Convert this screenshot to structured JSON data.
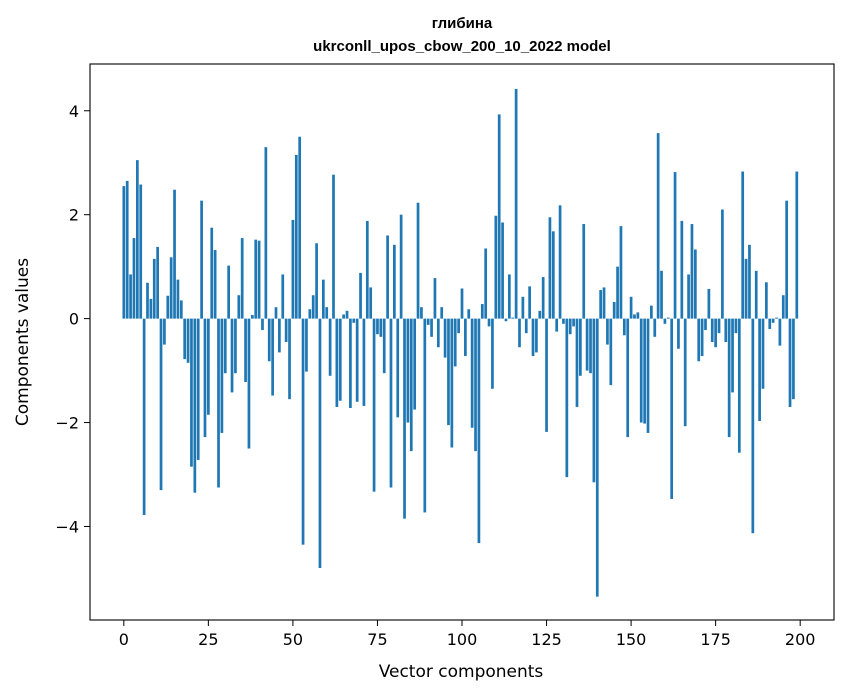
{
  "chart_data": {
    "type": "bar",
    "title": "глибина",
    "subtitle": "ukrconll_upos_cbow_200_10_2022 model",
    "xlabel": "Vector components",
    "ylabel": "Components values",
    "xlim": [
      -10,
      210
    ],
    "ylim": [
      -5.8,
      4.9
    ],
    "xticks": [
      0,
      25,
      50,
      75,
      100,
      125,
      150,
      175,
      200
    ],
    "xtick_labels": [
      "0",
      "25",
      "50",
      "75",
      "100",
      "125",
      "150",
      "175",
      "200"
    ],
    "yticks": [
      4,
      2,
      0,
      -2,
      -4
    ],
    "ytick_labels": [
      "4",
      "2",
      "0",
      "−2",
      "−4"
    ],
    "grid": false,
    "bar_color": "#1f77b4",
    "x": [
      0,
      1,
      2,
      3,
      4,
      5,
      6,
      7,
      8,
      9,
      10,
      11,
      12,
      13,
      14,
      15,
      16,
      17,
      18,
      19,
      20,
      21,
      22,
      23,
      24,
      25,
      26,
      27,
      28,
      29,
      30,
      31,
      32,
      33,
      34,
      35,
      36,
      37,
      38,
      39,
      40,
      41,
      42,
      43,
      44,
      45,
      46,
      47,
      48,
      49,
      50,
      51,
      52,
      53,
      54,
      55,
      56,
      57,
      58,
      59,
      60,
      61,
      62,
      63,
      64,
      65,
      66,
      67,
      68,
      69,
      70,
      71,
      72,
      73,
      74,
      75,
      76,
      77,
      78,
      79,
      80,
      81,
      82,
      83,
      84,
      85,
      86,
      87,
      88,
      89,
      90,
      91,
      92,
      93,
      94,
      95,
      96,
      97,
      98,
      99,
      100,
      101,
      102,
      103,
      104,
      105,
      106,
      107,
      108,
      109,
      110,
      111,
      112,
      113,
      114,
      115,
      116,
      117,
      118,
      119,
      120,
      121,
      122,
      123,
      124,
      125,
      126,
      127,
      128,
      129,
      130,
      131,
      132,
      133,
      134,
      135,
      136,
      137,
      138,
      139,
      140,
      141,
      142,
      143,
      144,
      145,
      146,
      147,
      148,
      149,
      150,
      151,
      152,
      153,
      154,
      155,
      156,
      157,
      158,
      159,
      160,
      161,
      162,
      163,
      164,
      165,
      166,
      167,
      168,
      169,
      170,
      171,
      172,
      173,
      174,
      175,
      176,
      177,
      178,
      179,
      180,
      181,
      182,
      183,
      184,
      185,
      186,
      187,
      188,
      189,
      190,
      191,
      192,
      193,
      194,
      195,
      196,
      197,
      198,
      199
    ],
    "values": [
      2.55,
      2.65,
      0.85,
      1.55,
      3.05,
      2.58,
      -3.78,
      0.69,
      0.38,
      1.15,
      1.38,
      -3.3,
      -0.5,
      0.44,
      1.18,
      2.48,
      0.75,
      0.35,
      -0.78,
      -0.85,
      -2.85,
      -3.35,
      -2.72,
      2.27,
      -2.28,
      -1.85,
      1.75,
      1.32,
      -3.25,
      -2.2,
      -1.05,
      1.02,
      -1.42,
      -1.05,
      0.45,
      1.55,
      -1.22,
      -2.5,
      0.07,
      1.52,
      1.5,
      -0.22,
      3.3,
      -0.82,
      -1.48,
      0.22,
      -0.65,
      0.85,
      -0.45,
      -1.55,
      1.9,
      3.15,
      3.5,
      -4.35,
      -1.02,
      0.18,
      0.45,
      1.45,
      -4.8,
      0.75,
      0.22,
      -1.1,
      2.77,
      -1.7,
      -1.58,
      0.08,
      0.15,
      -1.72,
      -0.08,
      -1.6,
      0.88,
      -1.68,
      1.88,
      0.6,
      -3.33,
      -0.3,
      -0.35,
      -1.05,
      1.6,
      -3.25,
      1.42,
      -1.9,
      2.0,
      -3.85,
      -2.0,
      -2.55,
      -1.75,
      2.23,
      0.22,
      -3.73,
      -0.12,
      -0.35,
      0.78,
      -0.55,
      0.22,
      -0.75,
      -2.05,
      -2.48,
      -0.92,
      -0.28,
      0.58,
      -0.72,
      0.18,
      -2.1,
      -2.55,
      -4.32,
      0.28,
      1.35,
      -0.15,
      -1.35,
      1.98,
      3.93,
      1.85,
      -0.05,
      0.85,
      0.02,
      4.42,
      -0.55,
      0.42,
      -0.28,
      0.62,
      -0.72,
      -0.65,
      0.15,
      0.8,
      -2.18,
      1.95,
      1.68,
      -0.25,
      2.18,
      -0.1,
      -3.05,
      -0.3,
      -0.15,
      -1.7,
      -1.1,
      1.82,
      -1.0,
      -1.05,
      -3.15,
      -5.35,
      0.55,
      0.6,
      -0.5,
      -1.28,
      0.32,
      1.0,
      1.78,
      -0.32,
      -2.28,
      0.42,
      0.08,
      0.12,
      -2.0,
      -2.02,
      -2.2,
      0.25,
      -0.35,
      3.57,
      0.92,
      -0.1,
      0.02,
      -3.47,
      2.82,
      -0.58,
      1.88,
      -2.07,
      0.85,
      1.82,
      1.33,
      -0.82,
      -0.72,
      -0.22,
      0.57,
      -0.45,
      -0.55,
      -0.28,
      2.1,
      -0.45,
      -2.28,
      -1.42,
      -0.28,
      -2.58,
      2.83,
      1.15,
      1.42,
      -4.13,
      0.92,
      -1.97,
      -1.35,
      0.7,
      -0.2,
      -0.08,
      0.02,
      -0.52,
      0.45,
      2.27,
      -1.7,
      -1.55,
      2.83
    ]
  }
}
